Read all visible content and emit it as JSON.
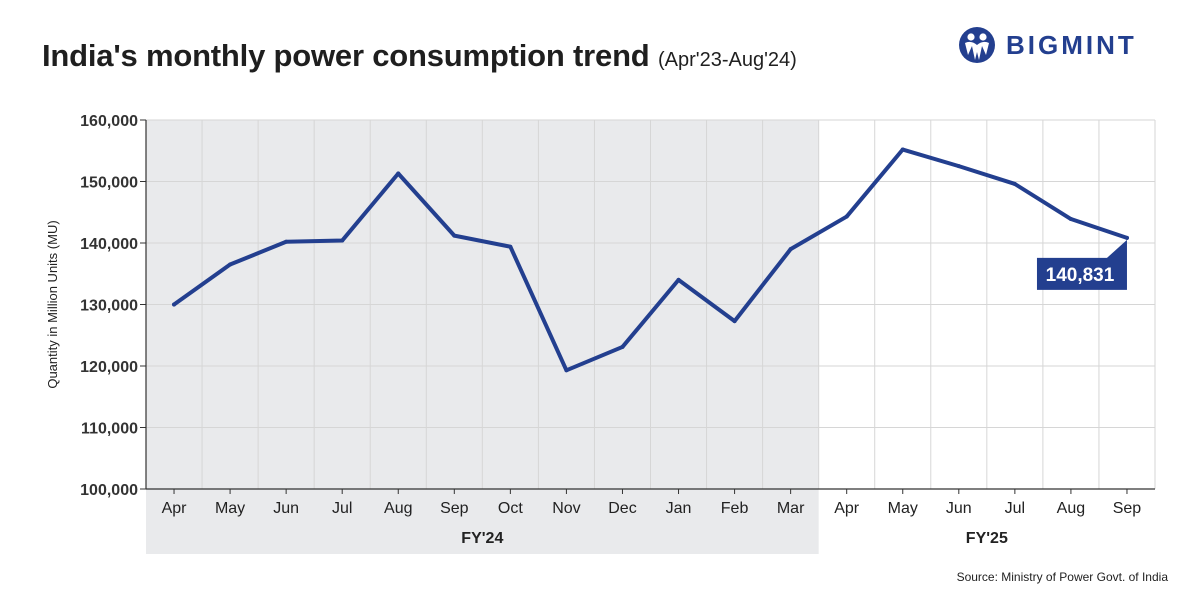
{
  "header": {
    "title": "India's monthly power consumption trend",
    "subtitle": "(Apr'23-Aug'24)"
  },
  "logo": {
    "text": "BIGMINT",
    "icon": "bigmint-people-icon",
    "color": "#233f8f"
  },
  "source": "Source: Ministry of Power Govt. of India",
  "chart_data": {
    "type": "line",
    "title": "India's monthly power consumption trend",
    "subtitle": "(Apr'23-Aug'24)",
    "xlabel": "",
    "ylabel": "Quantity in Million Units (MU)",
    "ylim": [
      100000,
      160000
    ],
    "yticks": [
      100000,
      110000,
      120000,
      130000,
      140000,
      150000,
      160000
    ],
    "ytick_labels": [
      "100,000",
      "110,000",
      "120,000",
      "130,000",
      "140,000",
      "150,000",
      "160,000"
    ],
    "categories": [
      "Apr",
      "May",
      "Jun",
      "Jul",
      "Aug",
      "Sep",
      "Oct",
      "Nov",
      "Dec",
      "Jan",
      "Feb",
      "Mar",
      "Apr",
      "May",
      "Jun",
      "Jul",
      "Aug",
      "Sep"
    ],
    "groups": [
      {
        "label": "FY'24",
        "start": 0,
        "end": 11,
        "shaded": true
      },
      {
        "label": "FY'25",
        "start": 12,
        "end": 17,
        "shaded": false
      }
    ],
    "series": [
      {
        "values": [
          130000,
          136500,
          140200,
          140400,
          151300,
          141200,
          139400,
          119300,
          123100,
          134000,
          127300,
          139000,
          144300,
          155200,
          152500,
          149600,
          143900,
          140831
        ],
        "color": "#233f8f"
      }
    ],
    "annotation": {
      "index": 17,
      "text": "140,831",
      "color": "#233f8f"
    },
    "grid": true,
    "colors": {
      "shade": "#e9eaec",
      "grid": "#d6d6d6",
      "line": "#233f8f"
    }
  }
}
